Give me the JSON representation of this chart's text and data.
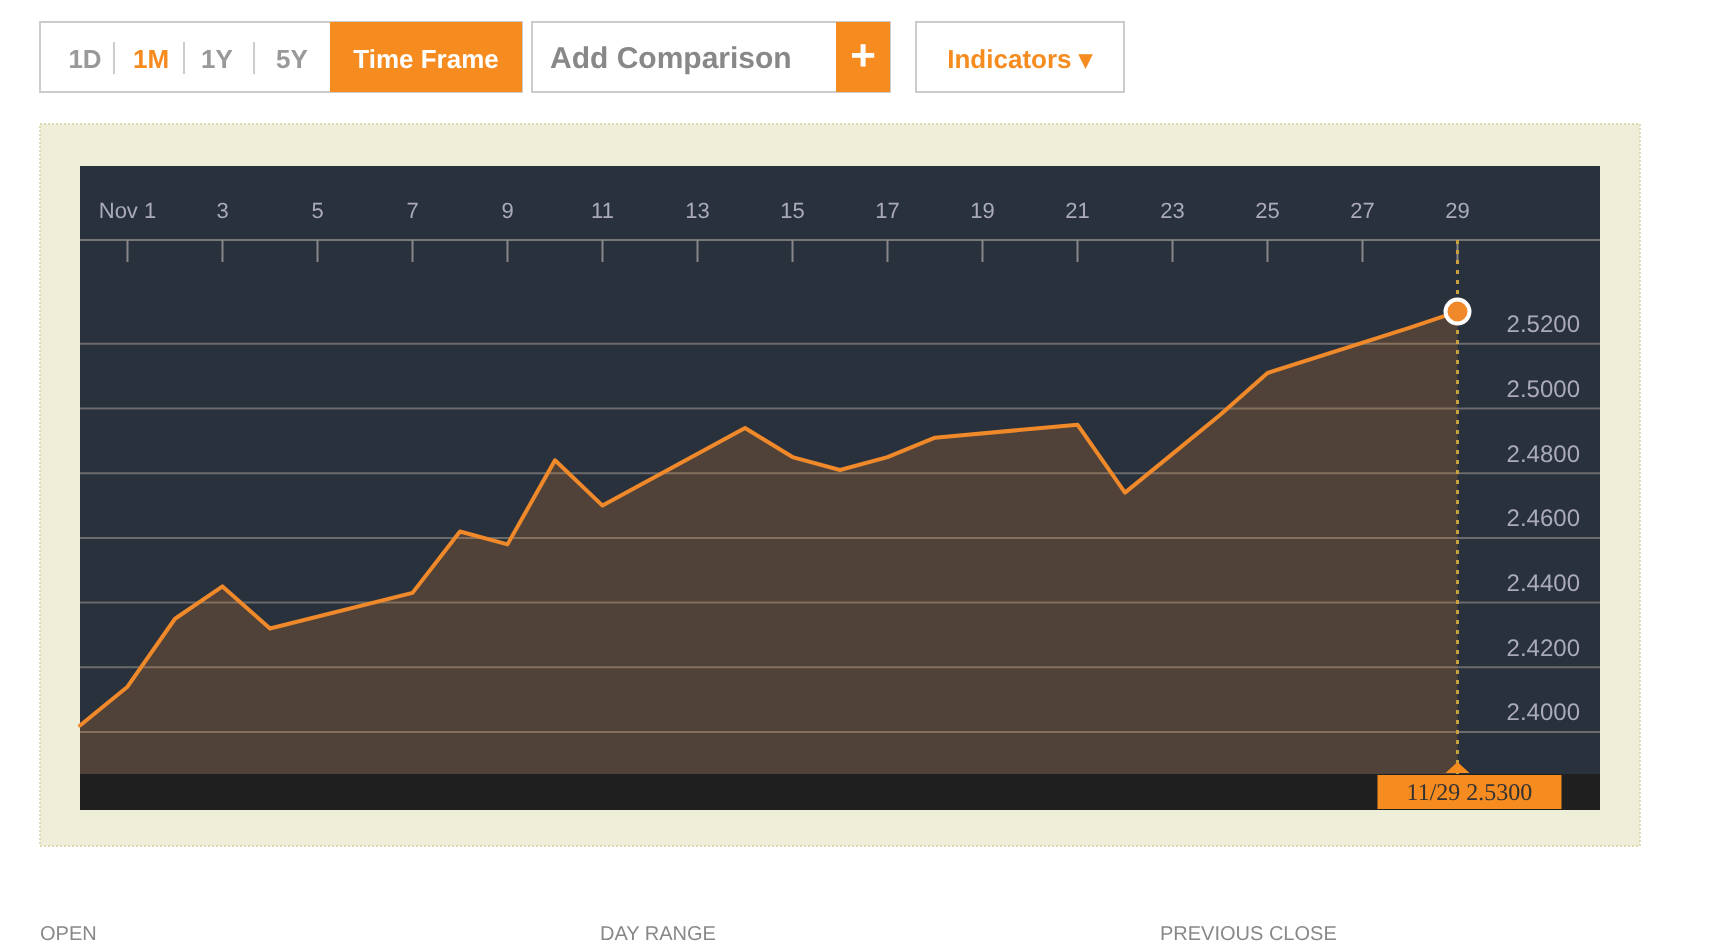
{
  "chart_data": {
    "type": "area",
    "x": [
      "--10-31",
      "--11-01",
      "--11-02",
      "--11-03",
      "--11-04",
      "--11-07",
      "--11-08",
      "--11-09",
      "--11-10",
      "--11-11",
      "--11-14",
      "--11-15",
      "--11-16",
      "--11-17",
      "--11-18",
      "--11-21",
      "--11-22",
      "--11-23",
      "--11-24",
      "--11-25",
      "--11-28",
      "--11-29"
    ],
    "series": [
      {
        "color": "#f0892a",
        "values": [
          2.402,
          2.414,
          2.435,
          2.445,
          2.432,
          2.443,
          2.462,
          2.458,
          2.484,
          2.47,
          2.494,
          2.485,
          2.481,
          2.485,
          2.491,
          2.495,
          2.474,
          2.486,
          2.498,
          2.511,
          2.525,
          2.53
        ]
      }
    ],
    "xlim": [
      "--10-31",
      "--12-02"
    ],
    "xticks": [
      {
        "value": "--11-01",
        "label": "Nov 1"
      },
      {
        "value": "--11-03",
        "label": "3"
      },
      {
        "value": "--11-05",
        "label": "5"
      },
      {
        "value": "--11-07",
        "label": "7"
      },
      {
        "value": "--11-09",
        "label": "9"
      },
      {
        "value": "--11-11",
        "label": "11"
      },
      {
        "value": "--11-13",
        "label": "13"
      },
      {
        "value": "--11-15",
        "label": "15"
      },
      {
        "value": "--11-17",
        "label": "17"
      },
      {
        "value": "--11-19",
        "label": "19"
      },
      {
        "value": "--11-21",
        "label": "21"
      },
      {
        "value": "--11-23",
        "label": "23"
      },
      {
        "value": "--11-25",
        "label": "25"
      },
      {
        "value": "--11-27",
        "label": "27"
      },
      {
        "value": "--11-29",
        "label": "29"
      }
    ],
    "ylim": [
      2.387,
      2.575
    ],
    "yticks": [
      {
        "value": 2.4,
        "label": "2.4000"
      },
      {
        "value": 2.42,
        "label": "2.4200"
      },
      {
        "value": 2.44,
        "label": "2.4400"
      },
      {
        "value": 2.46,
        "label": "2.4600"
      },
      {
        "value": 2.48,
        "label": "2.4800"
      },
      {
        "value": 2.5,
        "label": "2.5000"
      },
      {
        "value": 2.52,
        "label": "2.5200"
      }
    ],
    "grid": "y",
    "ref_lines": [
      {
        "axis": "x",
        "value": "--11-29",
        "color": "#c8a040",
        "line_style": "dotted"
      }
    ],
    "annotations": [
      "1D",
      "1M",
      "1Y",
      "5Y",
      "Time Frame",
      "Add Comparison",
      "+",
      "Indicators ▾",
      "OPEN",
      "DAY RANGE",
      "PREVIOUS CLOSE",
      "11/29 2.5300"
    ]
  }
}
